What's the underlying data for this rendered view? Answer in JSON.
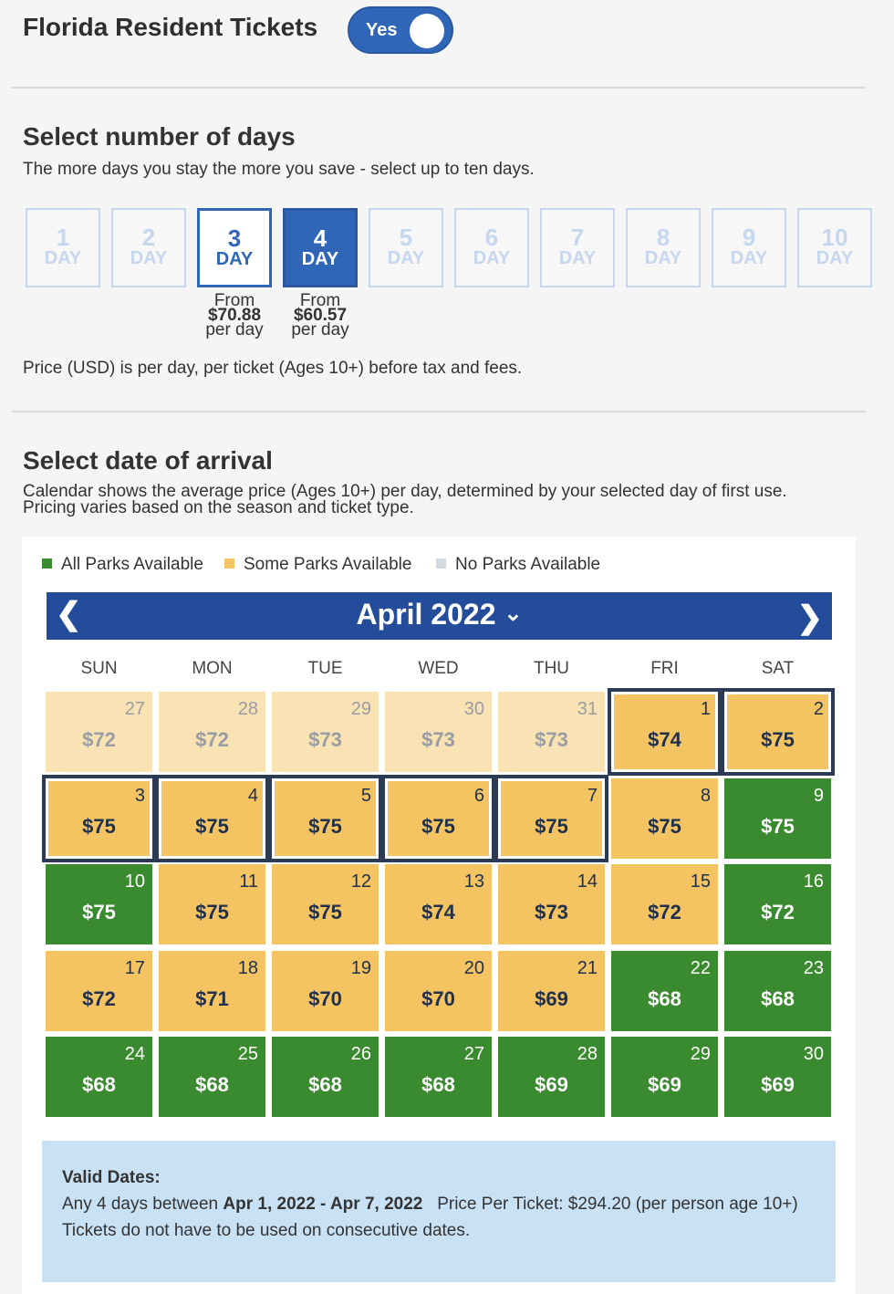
{
  "header": {
    "title": "Florida Resident Tickets",
    "toggle_label": "Yes",
    "toggle_on": true
  },
  "days_section": {
    "title": "Select number of days",
    "subtitle": "The more days you stay the more you save - select up to ten days.",
    "options": [
      {
        "n": "1",
        "unit": "DAY"
      },
      {
        "n": "2",
        "unit": "DAY"
      },
      {
        "n": "3",
        "unit": "DAY",
        "from": "From",
        "price": "$70.88",
        "per": "per day"
      },
      {
        "n": "4",
        "unit": "DAY",
        "from": "From",
        "price": "$60.57",
        "per": "per day"
      },
      {
        "n": "5",
        "unit": "DAY"
      },
      {
        "n": "6",
        "unit": "DAY"
      },
      {
        "n": "7",
        "unit": "DAY"
      },
      {
        "n": "8",
        "unit": "DAY"
      },
      {
        "n": "9",
        "unit": "DAY"
      },
      {
        "n": "10",
        "unit": "DAY"
      }
    ],
    "selected": "4",
    "note": "Price (USD) is per day, per ticket (Ages 10+) before tax and fees."
  },
  "arrival_section": {
    "title": "Select date of arrival",
    "line1": "Calendar shows the average price (Ages 10+) per day, determined by your selected day of first use.",
    "line2": "Pricing varies based on the season and ticket type."
  },
  "legend": [
    {
      "label": "All Parks Available",
      "color": "#3a8a2f"
    },
    {
      "label": "Some Parks Available",
      "color": "#f4c463"
    },
    {
      "label": "No Parks Available",
      "color": "#d5d9e0"
    }
  ],
  "calendar": {
    "month": "April 2022",
    "weekdays": [
      "SUN",
      "MON",
      "TUE",
      "WED",
      "THU",
      "FRI",
      "SAT"
    ],
    "cells": [
      {
        "d": "27",
        "p": "$72",
        "s": "faded"
      },
      {
        "d": "28",
        "p": "$72",
        "s": "faded"
      },
      {
        "d": "29",
        "p": "$73",
        "s": "faded"
      },
      {
        "d": "30",
        "p": "$73",
        "s": "faded"
      },
      {
        "d": "31",
        "p": "$73",
        "s": "faded"
      },
      {
        "d": "1",
        "p": "$74",
        "s": "some",
        "sel": true
      },
      {
        "d": "2",
        "p": "$75",
        "s": "some",
        "sel": true
      },
      {
        "d": "3",
        "p": "$75",
        "s": "some",
        "sel": true
      },
      {
        "d": "4",
        "p": "$75",
        "s": "some",
        "sel": true
      },
      {
        "d": "5",
        "p": "$75",
        "s": "some",
        "sel": true
      },
      {
        "d": "6",
        "p": "$75",
        "s": "some",
        "sel": true
      },
      {
        "d": "7",
        "p": "$75",
        "s": "some",
        "sel": true
      },
      {
        "d": "8",
        "p": "$75",
        "s": "some"
      },
      {
        "d": "9",
        "p": "$75",
        "s": "all"
      },
      {
        "d": "10",
        "p": "$75",
        "s": "all"
      },
      {
        "d": "11",
        "p": "$75",
        "s": "some"
      },
      {
        "d": "12",
        "p": "$75",
        "s": "some"
      },
      {
        "d": "13",
        "p": "$74",
        "s": "some"
      },
      {
        "d": "14",
        "p": "$73",
        "s": "some"
      },
      {
        "d": "15",
        "p": "$72",
        "s": "some"
      },
      {
        "d": "16",
        "p": "$72",
        "s": "all"
      },
      {
        "d": "17",
        "p": "$72",
        "s": "some"
      },
      {
        "d": "18",
        "p": "$71",
        "s": "some"
      },
      {
        "d": "19",
        "p": "$70",
        "s": "some"
      },
      {
        "d": "20",
        "p": "$70",
        "s": "some"
      },
      {
        "d": "21",
        "p": "$69",
        "s": "some"
      },
      {
        "d": "22",
        "p": "$68",
        "s": "all"
      },
      {
        "d": "23",
        "p": "$68",
        "s": "all"
      },
      {
        "d": "24",
        "p": "$68",
        "s": "all"
      },
      {
        "d": "25",
        "p": "$68",
        "s": "all"
      },
      {
        "d": "26",
        "p": "$68",
        "s": "all"
      },
      {
        "d": "27",
        "p": "$68",
        "s": "all"
      },
      {
        "d": "28",
        "p": "$69",
        "s": "all"
      },
      {
        "d": "29",
        "p": "$69",
        "s": "all"
      },
      {
        "d": "30",
        "p": "$69",
        "s": "all"
      }
    ]
  },
  "info": {
    "heading": "Valid Dates:",
    "prefix": "Any 4 days between ",
    "range": "Apr 1, 2022 - Apr 7, 2022",
    "price": "Price Per Ticket: $294.20 (per person age 10+)",
    "note": "Tickets do not have to be used on consecutive dates."
  }
}
